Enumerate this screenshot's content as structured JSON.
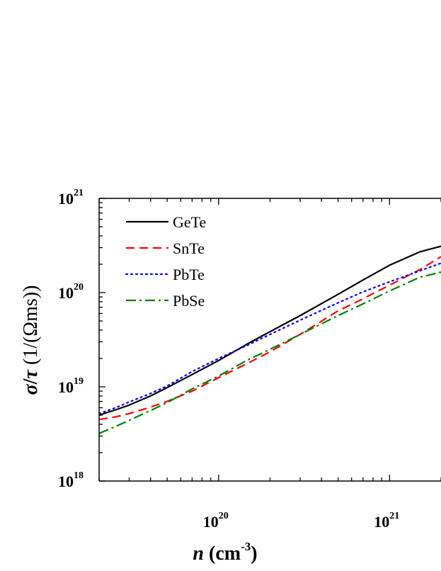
{
  "chart_data": {
    "type": "line",
    "scale": "log-log",
    "xlabel": "n (cm⁻³)",
    "ylabel": "σ/τ (1/(Ωms))",
    "xlabel_parts": {
      "var": "n",
      "unit": " (cm",
      "sup": "-3",
      "close": ")"
    },
    "ylabel_parts": {
      "sigma": "σ",
      "slash": "/",
      "tau": "τ",
      "unit": " (1/(Ωms))"
    },
    "xlim": [
      2e+19,
      2e+21
    ],
    "ylim": [
      1e+18,
      1e+21
    ],
    "x_ticks": [
      {
        "base": "10",
        "exp": "20",
        "value": 1e+20
      },
      {
        "base": "10",
        "exp": "21",
        "value": 1e+21
      }
    ],
    "y_ticks": [
      {
        "base": "10",
        "exp": "18",
        "value": 1e+18
      },
      {
        "base": "10",
        "exp": "19",
        "value": 1e+19
      },
      {
        "base": "10",
        "exp": "20",
        "value": 1e+20
      },
      {
        "base": "10",
        "exp": "21",
        "value": 1e+21
      }
    ],
    "legend_position": "top-left",
    "series": [
      {
        "name": "GeTe",
        "color": "#000000",
        "dash": "solid",
        "x": [
          2e+19,
          2.5e+19,
          3e+19,
          4e+19,
          5e+19,
          7e+19,
          1e+20,
          1.5e+20,
          2e+20,
          3e+20,
          5e+20,
          7e+20,
          1e+21,
          1.5e+21,
          2e+21
        ],
        "y": [
          5e+18,
          5.7e+18,
          6.4e+18,
          8e+18,
          9.8e+18,
          1.35e+19,
          1.9e+19,
          2.9e+19,
          3.85e+19,
          5.7e+19,
          9.6e+19,
          1.36e+20,
          1.95e+20,
          2.7e+20,
          3.1e+20
        ]
      },
      {
        "name": "SnTe",
        "color": "#ff0000",
        "dash": "dashed",
        "x": [
          2e+19,
          2.5e+19,
          3e+19,
          4e+19,
          5e+19,
          7e+19,
          1e+20,
          1.5e+20,
          2e+20,
          3e+20,
          5e+20,
          7e+20,
          1e+21,
          1.5e+21,
          2e+21
        ],
        "y": [
          4.5e+18,
          4.8e+18,
          5.2e+18,
          6.1e+18,
          7e+18,
          9e+18,
          1.25e+19,
          1.8e+19,
          2.35e+19,
          3.6e+19,
          6.4e+19,
          8.6e+19,
          1.2e+20,
          1.75e+20,
          2.4e+20
        ]
      },
      {
        "name": "PbTe",
        "color": "#0000ff",
        "dash": "dotted",
        "x": [
          2e+19,
          2.5e+19,
          3e+19,
          4e+19,
          5e+19,
          7e+19,
          1e+20,
          1.5e+20,
          2e+20,
          3e+20,
          5e+20,
          7e+20,
          1e+21,
          1.5e+21,
          2e+21
        ],
        "y": [
          5.2e+18,
          6e+18,
          6.9e+18,
          8.5e+18,
          1.02e+19,
          1.45e+19,
          2e+19,
          2.8e+19,
          3.6e+19,
          5.1e+19,
          7.8e+19,
          1.02e+20,
          1.3e+20,
          1.7e+20,
          2.05e+20
        ]
      },
      {
        "name": "PbSe",
        "color": "#008000",
        "dash": "dashdot",
        "x": [
          2e+19,
          2.5e+19,
          3e+19,
          4e+19,
          5e+19,
          7e+19,
          1e+20,
          1.5e+20,
          2e+20,
          3e+20,
          5e+20,
          7e+20,
          1e+21,
          1.5e+21,
          2e+21
        ],
        "y": [
          3.2e+18,
          3.8e+18,
          4.4e+18,
          5.6e+18,
          6.8e+18,
          9.5e+18,
          1.3e+19,
          1.95e+19,
          2.5e+19,
          3.6e+19,
          5.7e+19,
          7.6e+19,
          1.04e+20,
          1.45e+20,
          1.65e+20
        ]
      }
    ]
  }
}
